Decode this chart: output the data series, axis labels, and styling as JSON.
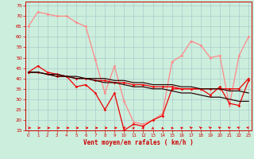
{
  "x": [
    0,
    1,
    2,
    3,
    4,
    5,
    6,
    7,
    8,
    9,
    10,
    11,
    12,
    13,
    14,
    15,
    16,
    17,
    18,
    19,
    20,
    21,
    22,
    23
  ],
  "line_rafales": [
    65,
    72,
    71,
    70,
    70,
    67,
    65,
    49,
    33,
    46,
    29,
    19,
    18,
    20,
    23,
    48,
    51,
    58,
    56,
    50,
    51,
    27,
    51,
    60
  ],
  "line_moy_volatile": [
    43,
    46,
    43,
    42,
    41,
    36,
    37,
    33,
    25,
    33,
    15,
    18,
    17,
    20,
    22,
    35,
    35,
    35,
    35,
    32,
    36,
    28,
    27,
    39
  ],
  "line_moy_smooth": [
    43,
    43,
    42,
    41,
    41,
    40,
    40,
    39,
    39,
    38,
    38,
    37,
    37,
    36,
    36,
    36,
    35,
    35,
    35,
    35,
    35,
    35,
    35,
    40
  ],
  "line_reg_dark1": [
    43,
    43,
    42,
    41,
    41,
    40,
    40,
    39,
    38,
    38,
    37,
    36,
    36,
    35,
    35,
    34,
    33,
    33,
    32,
    31,
    31,
    30,
    29,
    29
  ],
  "line_reg_dark2": [
    43,
    43,
    42,
    42,
    41,
    41,
    40,
    40,
    40,
    39,
    39,
    38,
    38,
    37,
    37,
    37,
    36,
    36,
    35,
    35,
    35,
    34,
    34,
    33
  ],
  "arrow_angles": [
    0,
    0,
    0,
    0,
    0,
    0,
    0,
    0,
    0,
    0,
    50,
    70,
    80,
    90,
    100,
    110,
    115,
    120,
    120,
    125,
    130,
    130,
    140,
    150
  ],
  "xlabel": "Vent moyen/en rafales ( km/h )",
  "ylim": [
    15,
    77
  ],
  "xlim": [
    -0.3,
    23.3
  ],
  "yticks": [
    15,
    20,
    25,
    30,
    35,
    40,
    45,
    50,
    55,
    60,
    65,
    70,
    75
  ],
  "xticks": [
    0,
    1,
    2,
    3,
    4,
    5,
    6,
    7,
    8,
    9,
    10,
    11,
    12,
    13,
    14,
    15,
    16,
    17,
    18,
    19,
    20,
    21,
    22,
    23
  ],
  "color_rafales": "#ff8888",
  "color_moy": "#ee0000",
  "color_dark": "#220000",
  "bg_color": "#cceedd",
  "grid_color": "#aacccc",
  "spine_color": "#cc0000",
  "tick_color": "#cc0000"
}
